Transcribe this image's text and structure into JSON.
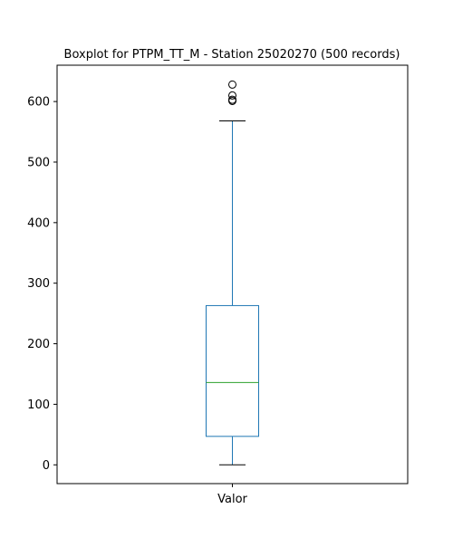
{
  "chart_data": {
    "type": "boxplot",
    "title": "Boxplot for PTPM_TT_M - Station 25020270 (500 records)",
    "xlabel": "",
    "ylabel": "",
    "categories": [
      "Valor"
    ],
    "ylim": [
      -31,
      660
    ],
    "yticks": [
      0,
      100,
      200,
      300,
      400,
      500,
      600
    ],
    "grid": false,
    "boxes": [
      {
        "label": "Valor",
        "whisker_low": 0,
        "q1": 47,
        "median": 136,
        "q3": 263,
        "whisker_high": 568,
        "outliers": [
          601,
          603,
          610,
          628
        ]
      }
    ],
    "colors": {
      "box": "#1f77b4",
      "median": "#2ca02c",
      "caps": "#000000",
      "axes": "#000000"
    }
  }
}
